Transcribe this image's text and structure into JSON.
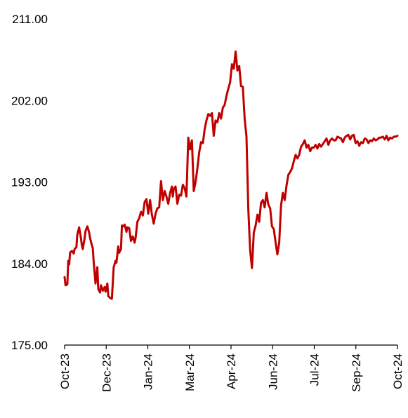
{
  "chart_data": {
    "type": "line",
    "title": "",
    "xlabel": "",
    "ylabel": "",
    "ylim": [
      175,
      211
    ],
    "yticks": [
      "175.00",
      "184.00",
      "193.00",
      "202.00",
      "211.00"
    ],
    "xticks": [
      "Oct-23",
      "Dec-23",
      "Jan-24",
      "Mar-24",
      "Apr-24",
      "Jun-24",
      "Jul-24",
      "Sep-24",
      "Oct-24"
    ],
    "grid": false,
    "legend": "none",
    "series": [
      {
        "color": "#c00000",
        "x": [
          0,
          1,
          3,
          4,
          5,
          6,
          8,
          10,
          11,
          13,
          14,
          16,
          18,
          19,
          20,
          22,
          23,
          25,
          27,
          28,
          30,
          31,
          32,
          34,
          36,
          37,
          39,
          40,
          42,
          44,
          45,
          47,
          48,
          50,
          52,
          54,
          56,
          57,
          59,
          60,
          62,
          63,
          65,
          66,
          68,
          69,
          71,
          73,
          75,
          77,
          78,
          80,
          82,
          84,
          86,
          88,
          90,
          92,
          94,
          96,
          98,
          100,
          102,
          104,
          106,
          108,
          110,
          112,
          114,
          116,
          118,
          119,
          120,
          122,
          124,
          126,
          128,
          130,
          132,
          134,
          136,
          138,
          140,
          142,
          144,
          146,
          148,
          150,
          152,
          154,
          156,
          158,
          160,
          162,
          164,
          166,
          168,
          170,
          172,
          174,
          176,
          178,
          180,
          182,
          184,
          186,
          188,
          190,
          192,
          194,
          196,
          198,
          200,
          202,
          204,
          206,
          208,
          210,
          212,
          214,
          216,
          218,
          220,
          222,
          224,
          226,
          228,
          230,
          232,
          234,
          236,
          238,
          240,
          242,
          244,
          246,
          248,
          250,
          252,
          254,
          256,
          258,
          260,
          262,
          264,
          266,
          268,
          270,
          272,
          274,
          276,
          278,
          280,
          282,
          284,
          286,
          288,
          290,
          292,
          294,
          296,
          298,
          300,
          302,
          304,
          306,
          308,
          310,
          312,
          314,
          316,
          318,
          320,
          322,
          324,
          326,
          328,
          330,
          332,
          334,
          336,
          338,
          340,
          342,
          344,
          346,
          348,
          350,
          352,
          354,
          356,
          358,
          360,
          362,
          364,
          366
        ],
        "values": [
          182.5,
          181.6,
          181.7,
          184.3,
          183.9,
          185.2,
          185.4,
          185.1,
          185.6,
          185.8,
          187.2,
          188.0,
          186.8,
          186.0,
          185.6,
          186.8,
          187.6,
          188.1,
          187.4,
          186.8,
          186.0,
          185.7,
          184.2,
          181.8,
          183.6,
          181.2,
          180.8,
          181.6,
          181.0,
          181.4,
          180.9,
          181.8,
          180.4,
          180.2,
          180.1,
          183.6,
          184.3,
          184.1,
          185.9,
          185.2,
          185.6,
          188.2,
          188.1,
          188.3,
          187.5,
          188.0,
          187.9,
          186.5,
          187.0,
          186.3,
          186.8,
          188.6,
          189.0,
          189.7,
          189.3,
          190.8,
          191.1,
          189.5,
          191.0,
          189.4,
          188.4,
          189.5,
          190.1,
          190.2,
          193.1,
          191.0,
          192.0,
          191.4,
          190.6,
          191.8,
          192.5,
          191.4,
          192.2,
          192.5,
          190.6,
          191.6,
          191.5,
          192.7,
          192.3,
          191.4,
          197.9,
          196.6,
          197.6,
          192.0,
          193.0,
          194.5,
          196.3,
          197.4,
          197.3,
          198.8,
          199.8,
          200.5,
          200.3,
          200.6,
          198.1,
          199.8,
          199.6,
          200.6,
          200.0,
          201.2,
          201.5,
          202.5,
          203.3,
          204.0,
          206.0,
          205.5,
          207.4,
          205.3,
          205.8,
          203.6,
          203.5,
          200.0,
          198.0,
          190.0,
          185.5,
          183.5,
          187.4,
          188.2,
          189.4,
          188.6,
          190.7,
          191.0,
          190.2,
          191.8,
          190.5,
          190.1,
          188.1,
          187.8,
          186.3,
          185.0,
          186.3,
          190.4,
          191.8,
          191.0,
          192.6,
          193.8,
          194.1,
          194.5,
          195.3,
          196.0,
          195.6,
          196.0,
          196.9,
          197.2,
          197.6,
          196.8,
          197.1,
          196.4,
          196.8,
          196.8,
          197.1,
          196.7,
          197.2,
          196.9,
          197.2,
          197.5,
          197.8,
          197.1,
          197.6,
          197.8,
          197.6,
          197.6,
          198.0,
          197.9,
          197.8,
          197.4,
          197.9,
          198.1,
          198.2,
          197.7,
          198.1,
          198.2,
          197.3,
          197.5,
          197.0,
          197.4,
          197.3,
          197.8,
          197.7,
          197.3,
          197.6,
          197.5,
          197.8,
          197.6,
          197.7,
          197.9,
          197.9,
          198.0,
          197.7,
          198.1,
          197.6,
          197.9,
          197.8,
          198.0,
          198.0,
          198.1
        ]
      }
    ]
  }
}
